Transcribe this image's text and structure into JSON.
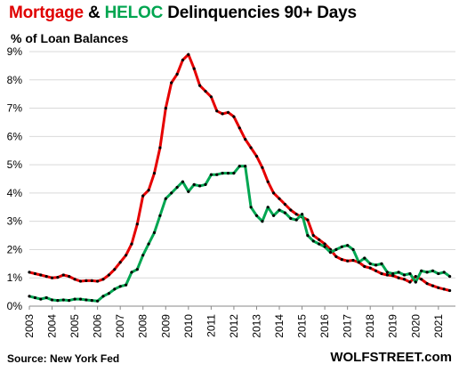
{
  "title": {
    "part1": "Mortgage",
    "part2": "&",
    "part3": "HELOC",
    "part4": "Delinquencies 90+ Days"
  },
  "subtitle": "% of Loan Balances",
  "source": "Source: New York Fed",
  "brand": "WOLFSTREET.com",
  "colors": {
    "mortgage": "#e60000",
    "heloc": "#00a651",
    "markers": "#000000",
    "grid": "#d9d9d9"
  },
  "chart_data": {
    "type": "line",
    "title": "Mortgage & HELOC Delinquencies 90+ Days",
    "ylabel": "% of Loan Balances",
    "xlim": [
      2003,
      2021.75
    ],
    "ylim": [
      0,
      9
    ],
    "y_ticks": [
      "0%",
      "1%",
      "2%",
      "3%",
      "4%",
      "5%",
      "6%",
      "7%",
      "8%",
      "9%"
    ],
    "x_ticks": [
      "2003",
      "2004",
      "2005",
      "2006",
      "2007",
      "2008",
      "2009",
      "2010",
      "2011",
      "2012",
      "2013",
      "2014",
      "2015",
      "2016",
      "2017",
      "2018",
      "2019",
      "2020",
      "2021"
    ],
    "grid": "horizontal",
    "series": [
      {
        "name": "Mortgage",
        "color": "#e60000",
        "x": [
          2003,
          2003.25,
          2003.5,
          2003.75,
          2004,
          2004.25,
          2004.5,
          2004.75,
          2005,
          2005.25,
          2005.5,
          2005.75,
          2006,
          2006.25,
          2006.5,
          2006.75,
          2007,
          2007.25,
          2007.5,
          2007.75,
          2008,
          2008.25,
          2008.5,
          2008.75,
          2009,
          2009.25,
          2009.5,
          2009.75,
          2010,
          2010.25,
          2010.5,
          2010.75,
          2011,
          2011.25,
          2011.5,
          2011.75,
          2012,
          2012.25,
          2012.5,
          2012.75,
          2013,
          2013.25,
          2013.5,
          2013.75,
          2014,
          2014.25,
          2014.5,
          2014.75,
          2015,
          2015.25,
          2015.5,
          2015.75,
          2016,
          2016.25,
          2016.5,
          2016.75,
          2017,
          2017.25,
          2017.5,
          2017.75,
          2018,
          2018.25,
          2018.5,
          2018.75,
          2019,
          2019.25,
          2019.5,
          2019.75,
          2020,
          2020.25,
          2020.5,
          2020.75,
          2021,
          2021.25,
          2021.5
        ],
        "values": [
          1.2,
          1.15,
          1.1,
          1.05,
          1.0,
          1.02,
          1.1,
          1.05,
          0.95,
          0.88,
          0.9,
          0.9,
          0.88,
          0.95,
          1.1,
          1.3,
          1.55,
          1.8,
          2.2,
          2.9,
          3.9,
          4.1,
          4.7,
          5.6,
          7.0,
          7.9,
          8.2,
          8.7,
          8.9,
          8.4,
          7.8,
          7.6,
          7.4,
          6.9,
          6.8,
          6.85,
          6.7,
          6.3,
          5.9,
          5.6,
          5.3,
          4.9,
          4.4,
          4.0,
          3.8,
          3.6,
          3.4,
          3.25,
          3.15,
          3.05,
          2.5,
          2.35,
          2.2,
          2.0,
          1.75,
          1.65,
          1.6,
          1.62,
          1.55,
          1.4,
          1.35,
          1.25,
          1.15,
          1.1,
          1.08,
          1.0,
          0.95,
          0.85,
          1.05,
          0.95,
          0.8,
          0.72,
          0.65,
          0.6,
          0.55
        ]
      },
      {
        "name": "HELOC",
        "color": "#00a651",
        "x": [
          2003,
          2003.25,
          2003.5,
          2003.75,
          2004,
          2004.25,
          2004.5,
          2004.75,
          2005,
          2005.25,
          2005.5,
          2005.75,
          2006,
          2006.25,
          2006.5,
          2006.75,
          2007,
          2007.25,
          2007.5,
          2007.75,
          2008,
          2008.25,
          2008.5,
          2008.75,
          2009,
          2009.25,
          2009.5,
          2009.75,
          2010,
          2010.25,
          2010.5,
          2010.75,
          2011,
          2011.25,
          2011.5,
          2011.75,
          2012,
          2012.25,
          2012.5,
          2012.75,
          2013,
          2013.25,
          2013.5,
          2013.75,
          2014,
          2014.25,
          2014.5,
          2014.75,
          2015,
          2015.25,
          2015.5,
          2015.75,
          2016,
          2016.25,
          2016.5,
          2016.75,
          2017,
          2017.25,
          2017.5,
          2017.75,
          2018,
          2018.25,
          2018.5,
          2018.75,
          2019,
          2019.25,
          2019.5,
          2019.75,
          2020,
          2020.25,
          2020.5,
          2020.75,
          2021,
          2021.25,
          2021.5
        ],
        "values": [
          0.35,
          0.3,
          0.25,
          0.3,
          0.22,
          0.2,
          0.22,
          0.2,
          0.25,
          0.25,
          0.22,
          0.2,
          0.18,
          0.35,
          0.45,
          0.6,
          0.7,
          0.75,
          1.2,
          1.3,
          1.8,
          2.2,
          2.6,
          3.2,
          3.8,
          4.0,
          4.2,
          4.4,
          4.05,
          4.3,
          4.25,
          4.3,
          4.65,
          4.65,
          4.7,
          4.7,
          4.7,
          4.95,
          4.95,
          3.5,
          3.2,
          3.0,
          3.5,
          3.2,
          3.4,
          3.3,
          3.1,
          3.05,
          3.25,
          2.5,
          2.3,
          2.2,
          2.1,
          1.9,
          2.0,
          2.1,
          2.15,
          2.0,
          1.55,
          1.7,
          1.5,
          1.45,
          1.5,
          1.2,
          1.15,
          1.2,
          1.1,
          1.15,
          0.85,
          1.25,
          1.2,
          1.25,
          1.15,
          1.2,
          1.05
        ]
      }
    ]
  }
}
